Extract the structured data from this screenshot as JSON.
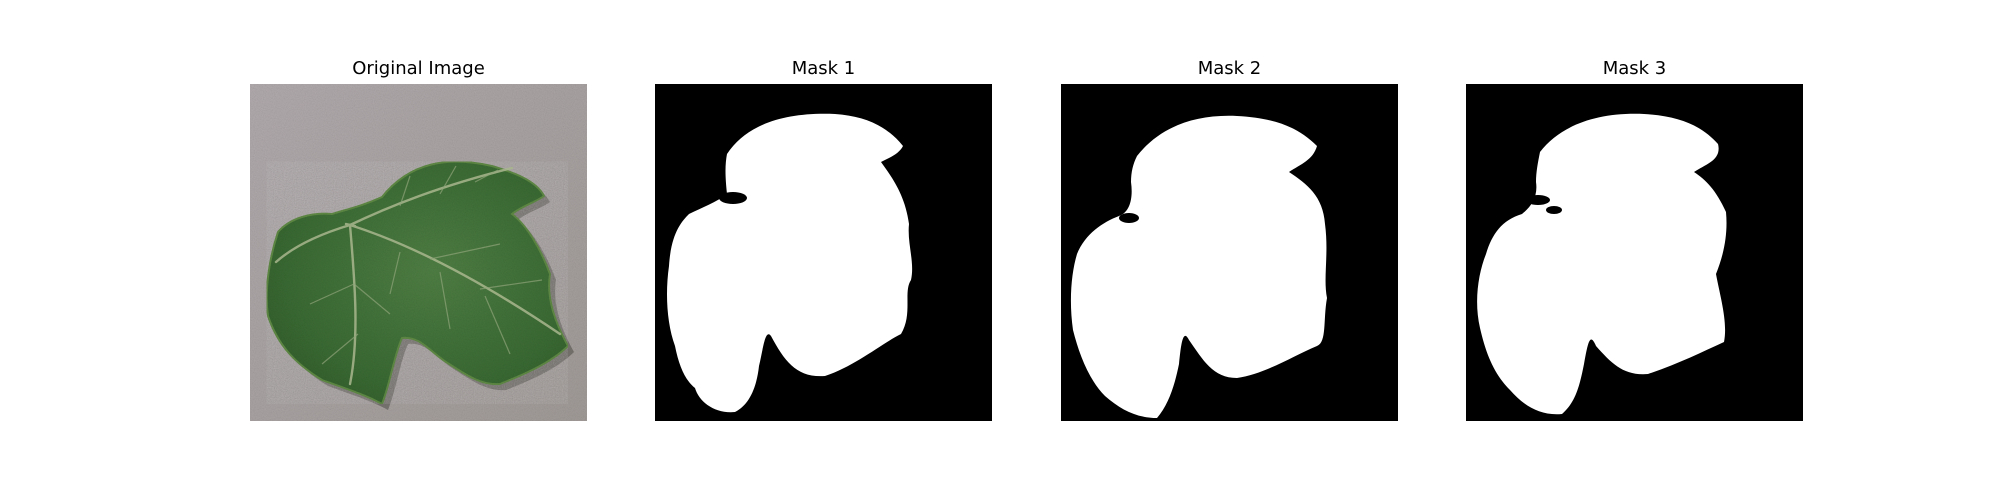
{
  "panels": [
    {
      "title": "Original Image",
      "image": "grape-leaf-photo"
    },
    {
      "title": "Mask 1",
      "image": "segmentation-mask"
    },
    {
      "title": "Mask 2",
      "image": "segmentation-mask"
    },
    {
      "title": "Mask 3",
      "image": "segmentation-mask"
    }
  ],
  "colors": {
    "background": "#ffffff",
    "mask_foreground": "#ffffff",
    "mask_background": "#000000",
    "leaf_green": "#3f6f36",
    "ground_gray": "#a9a2a3"
  }
}
